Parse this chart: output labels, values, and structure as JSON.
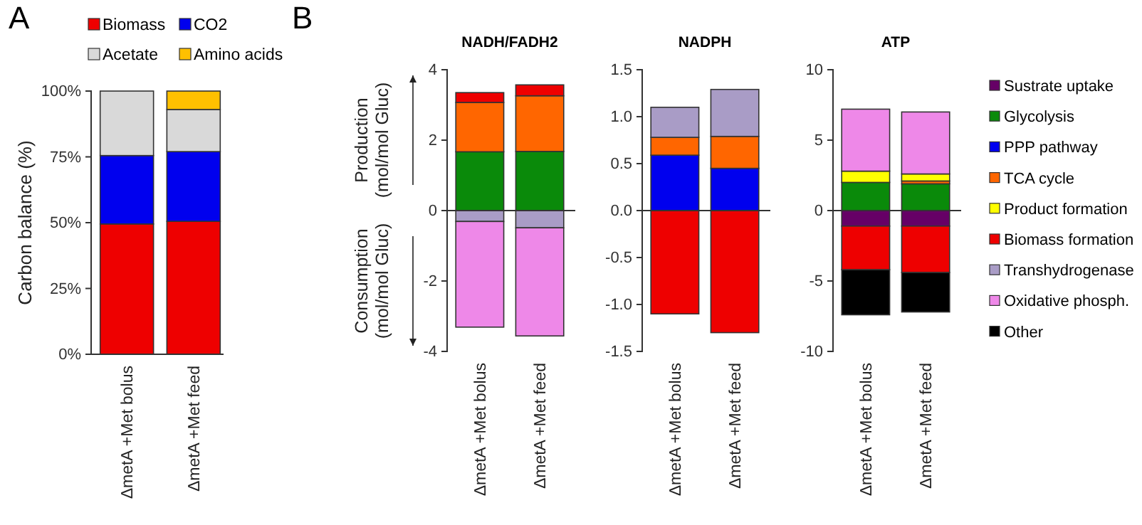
{
  "chart_data": [
    {
      "type": "bar",
      "stacked": true,
      "categories": [
        "ΔmetA +Met bolus",
        "ΔmetA +Met feed"
      ],
      "ylabel": "Carbon balance (%)",
      "ylim": [
        0,
        100
      ],
      "yticks": [
        {
          "value": 0,
          "label": "0%"
        },
        {
          "value": 25,
          "label": "25%"
        },
        {
          "value": 50,
          "label": "50%"
        },
        {
          "value": 75,
          "label": "75%"
        },
        {
          "value": 100,
          "label": "100%"
        }
      ],
      "legend": "top",
      "annotations": [
        "A"
      ],
      "series": [
        {
          "name": "Biomass",
          "color": "#ee0000",
          "values": [
            49.5,
            50.5
          ]
        },
        {
          "name": "CO2",
          "color": "#0000ee",
          "values": [
            26,
            26.5
          ]
        },
        {
          "name": "Acetate",
          "color": "#d9d9d9",
          "values": [
            24.5,
            16
          ]
        },
        {
          "name": "Amino acids",
          "color": "#ffc000",
          "values": [
            null,
            7
          ]
        }
      ]
    },
    {
      "type": "bar",
      "stacked": true,
      "title": "NADH/FADH2",
      "categories": [
        "ΔmetA +Met bolus",
        "ΔmetA +Met feed"
      ],
      "ylabel": "Production (mol/mol Gluc)",
      "ylim": [
        -4,
        4
      ],
      "yticks": [
        -4,
        -2,
        0,
        2,
        4
      ],
      "annotations": [
        "B",
        "Consumption (mol/mol Gluc)"
      ],
      "series": [
        {
          "color": "#0a8a0a",
          "values": [
            1.67,
            1.68
          ]
        },
        {
          "color": "#ff6600",
          "values": [
            1.4,
            1.58
          ]
        },
        {
          "color": "#ee0000",
          "values": [
            0.28,
            0.31
          ]
        },
        {
          "color": "#a99cc6",
          "values": [
            -0.31,
            -0.49
          ]
        },
        {
          "color": "#ee88e8",
          "values": [
            -3.0,
            -3.07
          ]
        }
      ]
    },
    {
      "type": "bar",
      "stacked": true,
      "title": "NADPH",
      "categories": [
        "ΔmetA +Met bolus",
        "ΔmetA +Met feed"
      ],
      "ylim": [
        -1.5,
        1.5
      ],
      "yticks": [
        -1.5,
        {
          "value": -1,
          "label": "-1.0"
        },
        -0.5,
        {
          "value": 0,
          "label": "0.0"
        },
        0.5,
        {
          "value": 1,
          "label": "1.0"
        },
        1.5
      ],
      "series": [
        {
          "color": "#0000ee",
          "values": [
            0.59,
            0.45
          ]
        },
        {
          "color": "#ff6600",
          "values": [
            0.19,
            0.34
          ]
        },
        {
          "color": "#a99cc6",
          "values": [
            0.32,
            0.5
          ]
        },
        {
          "color": "#ee0000",
          "values": [
            -1.1,
            -1.3
          ]
        }
      ]
    },
    {
      "type": "bar",
      "stacked": true,
      "title": "ATP",
      "categories": [
        "ΔmetA +Met bolus",
        "ΔmetA +Met feed"
      ],
      "ylim": [
        -10,
        10
      ],
      "yticks": [
        -10,
        -5,
        0,
        5,
        10
      ],
      "legend": "right",
      "series": [
        {
          "name": "Sustrate uptake",
          "color": "#660066",
          "values": [
            -1.1,
            -1.1
          ]
        },
        {
          "name": "Glycolysis",
          "color": "#0a8a0a",
          "values": [
            2.0,
            1.9
          ]
        },
        {
          "name": "PPP pathway",
          "color": "#0000ee",
          "values": [
            null,
            null
          ]
        },
        {
          "name": "TCA cycle",
          "color": "#ff6600",
          "values": [
            null,
            0.2
          ]
        },
        {
          "name": "Product formation",
          "color": "#ffff00",
          "values": [
            0.8,
            0.5
          ]
        },
        {
          "name": "Biomass formation",
          "color": "#ee0000",
          "values": [
            -3.1,
            -3.3
          ]
        },
        {
          "name": "Transhydrogenase",
          "color": "#a99cc6",
          "values": [
            null,
            null
          ]
        },
        {
          "name": "Oxidative phosph.",
          "color": "#ee88e8",
          "values": [
            4.4,
            4.4
          ]
        },
        {
          "name": "Other",
          "color": "#000000",
          "values": [
            -3.2,
            -2.8
          ]
        }
      ]
    }
  ]
}
